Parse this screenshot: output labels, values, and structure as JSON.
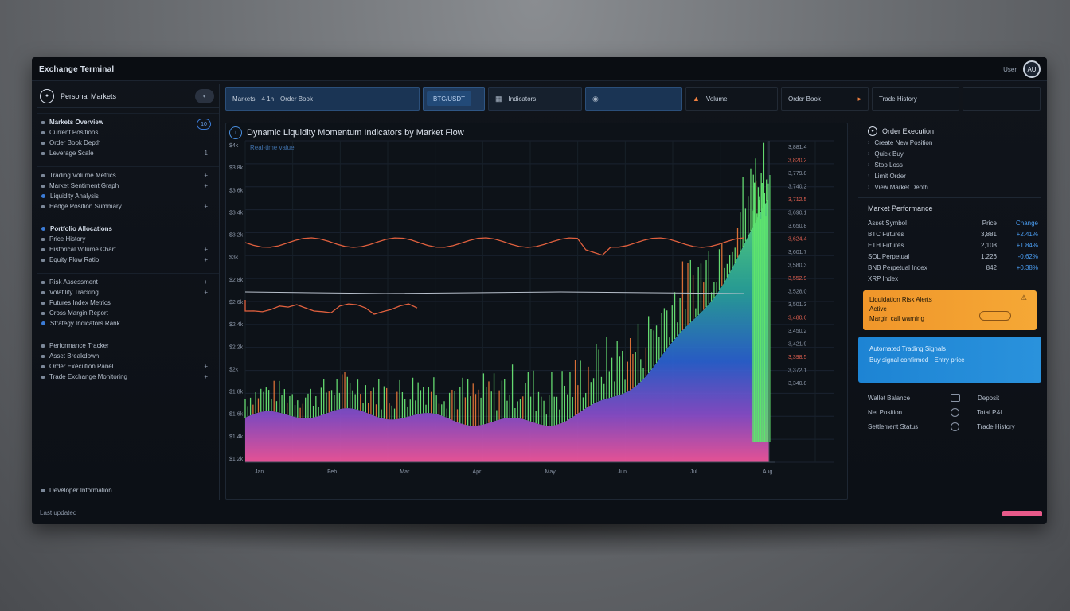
{
  "window": {
    "title": "Exchange Terminal",
    "user_label": "User",
    "avatar": "AU"
  },
  "sidebar": {
    "profile_name": "Personal Markets",
    "toggle": "◐",
    "groups": [
      {
        "badge": "10",
        "rows": [
          {
            "label": "Markets Overview",
            "right": "",
            "bullet": "dot",
            "header": true
          },
          {
            "label": "Current Positions",
            "right": "",
            "bullet": "dot"
          },
          {
            "label": "Order Book Depth",
            "right": "",
            "bullet": "dot"
          },
          {
            "label": "Leverage Scale",
            "right": "1",
            "bullet": "dot"
          }
        ]
      },
      {
        "badge": "",
        "rows": [
          {
            "label": "Trading Volume Metrics",
            "right": "+",
            "bullet": "dot"
          },
          {
            "label": "Market Sentiment Graph",
            "right": "+",
            "bullet": "dot"
          },
          {
            "label": "Liquidity Analysis",
            "right": "",
            "bullet": "blue"
          },
          {
            "label": "Hedge Position Summary",
            "right": "+",
            "bullet": "dot"
          }
        ]
      },
      {
        "badge": "",
        "rows": [
          {
            "label": "Portfolio Allocations",
            "right": "",
            "bullet": "blue",
            "header": true
          },
          {
            "label": "Price History",
            "right": "",
            "bullet": "dot"
          },
          {
            "label": "Historical Volume Chart",
            "right": "+",
            "bullet": "dot"
          },
          {
            "label": "Equity Flow Ratio",
            "right": "+",
            "bullet": "dot"
          }
        ]
      },
      {
        "badge": "",
        "rows": [
          {
            "label": "Risk Assessment",
            "right": "+",
            "bullet": "dot"
          },
          {
            "label": "Volatility Tracking",
            "right": "+",
            "bullet": "dot"
          },
          {
            "label": "Futures Index Metrics",
            "right": "",
            "bullet": "dot"
          },
          {
            "label": "Cross Margin Report",
            "right": "",
            "bullet": "dot"
          },
          {
            "label": "Strategy Indicators Rank",
            "right": "",
            "bullet": "blue"
          }
        ]
      },
      {
        "badge": "",
        "rows": [
          {
            "label": "Performance Tracker",
            "right": "",
            "bullet": "dot"
          },
          {
            "label": "Asset Breakdown",
            "right": "",
            "bullet": "dot"
          },
          {
            "label": "Order Execution Panel",
            "right": "+",
            "bullet": "dot"
          },
          {
            "label": "Trade Exchange Monitoring",
            "right": "+",
            "bullet": "dot"
          }
        ]
      }
    ],
    "footer_item": "Developer Information",
    "footer_status": "Last updated"
  },
  "toolbar": {
    "seg1_a": "Markets",
    "seg1_b": "4  1h",
    "seg1_c": "Order Book",
    "chip": "BTC/USDT",
    "seg3_icon": "▦",
    "seg3_label": "Indicators",
    "seg4_icon": "◉",
    "seg5_label": "Volume",
    "seg6_label": "Order Book",
    "seg7_label": "Trade History"
  },
  "chart": {
    "title": "Dynamic Liquidity Momentum Indicators by Market Flow",
    "subtitle": "Real-time value",
    "y_ticks": [
      "$4k",
      "$3.8k",
      "$3.6k",
      "$3.4k",
      "$3.2k",
      "$3k",
      "$2.8k",
      "$2.6k",
      "$2.4k",
      "$2.2k",
      "$2k",
      "$1.8k",
      "$1.6k",
      "$1.4k",
      "$1.2k"
    ],
    "x_ticks": [
      "Jan",
      "Feb",
      "Mar",
      "Apr",
      "May",
      "Jun",
      "Jul",
      "Aug"
    ],
    "right_labels": [
      "3,881.4",
      "3,820.2",
      "3,779.8",
      "3,740.2",
      "3,712.5",
      "3,690.1",
      "3,650.8",
      "3,624.4",
      "3,601.7",
      "3,580.3",
      "3,552.9",
      "3,528.0",
      "3,501.3",
      "3,480.6",
      "3,450.2",
      "3,421.9",
      "3,398.5",
      "3,372.1",
      "3,340.8"
    ]
  },
  "right_panel": {
    "header": "Order Execution",
    "items": [
      "Create New Position",
      "Quick Buy",
      "Stop Loss",
      "Limit Order",
      "View Market Depth"
    ],
    "section_title": "Market Performance",
    "table": [
      {
        "c1": "Asset Symbol",
        "c2": "Price",
        "c3": "Change"
      },
      {
        "c1": "BTC Futures",
        "c2": "3,881",
        "c3": "+2.41%"
      },
      {
        "c1": "ETH Futures",
        "c2": "2,108",
        "c3": "+1.84%"
      },
      {
        "c1": "SOL Perpetual",
        "c2": "1,226",
        "c3": "-0.62%"
      },
      {
        "c1": "BNB Perpetual Index",
        "c2": "842",
        "c3": "+0.38%"
      },
      {
        "c1": "XRP Index",
        "c2": "",
        "c3": ""
      }
    ],
    "orange_card": {
      "line1": "Liquidation Risk Alerts",
      "line2": "Active",
      "line3": "Margin call warning",
      "icon": "⚠"
    },
    "blue_card": {
      "line1": "Automated Trading Signals",
      "line2": "Buy signal confirmed · Entry price"
    },
    "bottom": [
      {
        "left": "Wallet Balance",
        "right": "Deposit"
      },
      {
        "left": "Net Position",
        "right": "Total P&L"
      },
      {
        "left": "Settlement Status",
        "right": "Trade History"
      }
    ]
  }
}
